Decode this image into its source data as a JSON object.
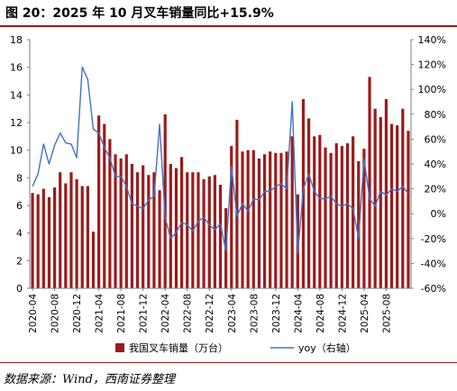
{
  "figure_title": "图 20：2025 年 10 月叉车销量同比+15.9%",
  "source_note": "数据来源：Wind，西南证券整理",
  "colors": {
    "bar": "#9b1b1b",
    "line": "#4472c4",
    "rule": "#9a1a1a",
    "axis": "#7f7f7f"
  },
  "chart_data": {
    "type": "bar",
    "title": "",
    "xlabel": "",
    "ylabel": "",
    "ylabel_right": "",
    "grid": false,
    "legend_position": "bottom",
    "x_start": "2020-04",
    "x_ticks": [
      "2020-04",
      "2020-08",
      "2020-12",
      "2021-04",
      "2021-08",
      "2021-12",
      "2022-04",
      "2022-08",
      "2022-12",
      "2023-04",
      "2023-08",
      "2023-12",
      "2024-04",
      "2024-08",
      "2024-12",
      "2025-04",
      "2025-08"
    ],
    "ylim": [
      0,
      18
    ],
    "y_ticks": [
      "0",
      "2",
      "4",
      "6",
      "8",
      "10",
      "12",
      "14",
      "16",
      "18"
    ],
    "ylim_right": [
      -60,
      140
    ],
    "y2_ticks": [
      "-60%",
      "-40%",
      "-20%",
      "0%",
      "20%",
      "40%",
      "60%",
      "80%",
      "100%",
      "120%",
      "140%"
    ],
    "series": [
      {
        "name": "我国叉车销量（万台）",
        "type": "bar",
        "axis": "left",
        "values": [
          6.9,
          6.8,
          7.2,
          6.6,
          7.3,
          8.4,
          7.6,
          8.4,
          7.9,
          7.4,
          7.4,
          4.1,
          12.5,
          11.9,
          10.8,
          9.7,
          9.4,
          9.7,
          9.0,
          8.4,
          8.9,
          8.2,
          8.4,
          7.1,
          12.6,
          9.0,
          8.7,
          9.5,
          8.4,
          8.4,
          8.4,
          7.9,
          8.1,
          8.2,
          7.5,
          5.8,
          10.3,
          12.2,
          9.9,
          10.0,
          10.0,
          9.4,
          9.7,
          9.9,
          9.8,
          9.8,
          9.9,
          11.0,
          6.8,
          13.7,
          12.3,
          11.0,
          11.1,
          10.2,
          9.8,
          10.5,
          10.3,
          10.5,
          11.0,
          9.2,
          10.1,
          15.3,
          13.0,
          12.4,
          13.7,
          11.9,
          11.8,
          13.0,
          11.4
        ]
      },
      {
        "name": "yoy（右轴）",
        "type": "line",
        "axis": "right",
        "values": [
          22,
          32,
          56,
          40,
          55,
          65,
          57,
          56,
          45,
          118,
          108,
          68,
          65,
          53,
          45,
          30,
          30,
          22,
          8,
          6,
          4,
          11,
          14,
          72,
          -3,
          -20,
          -15,
          -7,
          -9,
          -14,
          -6,
          -3,
          -9,
          -13,
          -8,
          -30,
          38,
          -2,
          8,
          2,
          12,
          11,
          18,
          18,
          22,
          24,
          20,
          90,
          -32,
          20,
          32,
          18,
          12,
          12,
          14,
          8,
          6,
          8,
          4,
          -20,
          44,
          12,
          6,
          18,
          15,
          20,
          18,
          22,
          16
        ]
      }
    ]
  }
}
